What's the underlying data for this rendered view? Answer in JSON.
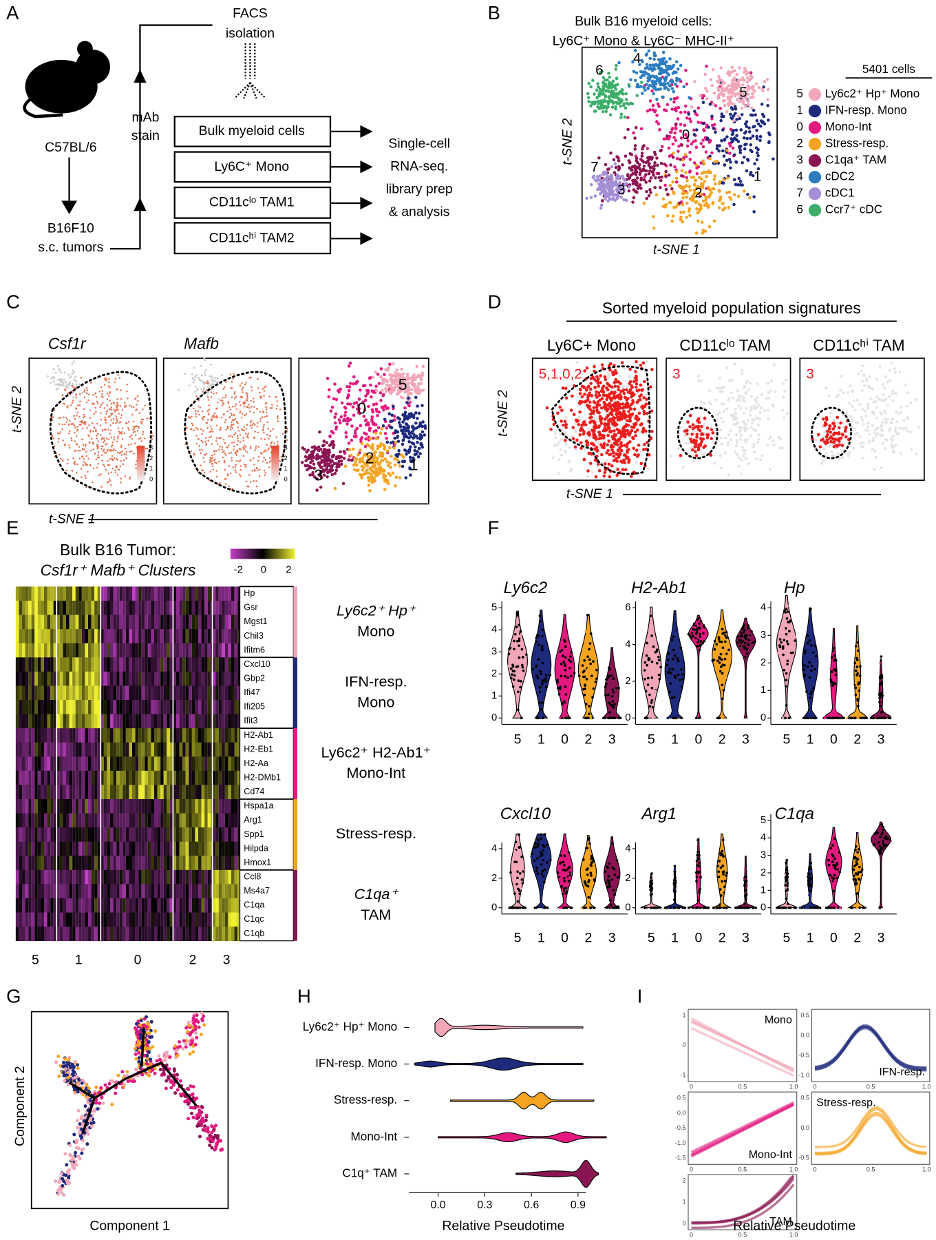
{
  "panel_labels": [
    "A",
    "B",
    "C",
    "D",
    "E",
    "F",
    "G",
    "H",
    "I"
  ],
  "panel_a": {
    "mouse": "C57BL/6",
    "tumor": [
      "B16F10",
      "s.c. tumors"
    ],
    "stain": [
      "mAb",
      "stain"
    ],
    "facs": [
      "FACS",
      "isolation"
    ],
    "sorts": [
      "Bulk myeloid cells",
      "Ly6C⁺ Mono",
      "CD11cˡᵒ TAM1",
      "CD11cʰⁱ TAM2"
    ],
    "output": [
      "Single-cell",
      "RNA-seq.",
      "library prep",
      "& analysis"
    ]
  },
  "panel_b": {
    "title": [
      "Bulk B16 myeloid cells:",
      "Ly6C⁺ Mono & Ly6C⁻ MHC-II⁺"
    ],
    "x_label": "t-SNE 1",
    "y_label": "t-SNE 2",
    "legend_title": "5401 cells",
    "clusters": [
      {
        "id": "5",
        "name": "Ly6c2⁺ Hp⁺ Mono",
        "color": "#f2a7b8"
      },
      {
        "id": "1",
        "name": "IFN-resp. Mono",
        "color": "#1e2a7c"
      },
      {
        "id": "0",
        "name": "Mono-Int",
        "color": "#e3197f"
      },
      {
        "id": "2",
        "name": "Stress-resp.",
        "color": "#f4a421"
      },
      {
        "id": "3",
        "name": "C1qa⁺ TAM",
        "color": "#8a1552"
      },
      {
        "id": "4",
        "name": "cDC2",
        "color": "#2c7cc0"
      },
      {
        "id": "7",
        "name": "cDC1",
        "color": "#a48fd6"
      },
      {
        "id": "6",
        "name": "Ccr7⁺ cDC",
        "color": "#3dae6a"
      }
    ]
  },
  "panel_c": {
    "genes": [
      "Csf1r",
      "Mafb"
    ],
    "x_label": "t-SNE 1",
    "y_label": "t-SNE 2",
    "colorbar_ticks": [
      "3",
      "2",
      "1",
      "0"
    ],
    "cluster_labels": [
      "5",
      "0",
      "3",
      "2",
      "1"
    ]
  },
  "panel_d": {
    "title": "Sorted myeloid population signatures",
    "subtitles": [
      "Ly6C+ Mono",
      "CD11cˡᵒ TAM",
      "CD11cʰⁱ TAM"
    ],
    "cluster_labels": [
      "5,1,0,2",
      "3",
      "3"
    ],
    "x_label": "t-SNE 1",
    "y_label": "t-SNE 2"
  },
  "panel_e": {
    "title": [
      "Bulk B16 Tumor:",
      "Csf1r⁺ Mafb⁺ Clusters"
    ],
    "colorbar_ticks": [
      "-2",
      "0",
      "2"
    ],
    "genes": [
      "Hp",
      "Gsr",
      "Mgst1",
      "Chil3",
      "Ifitm6",
      "Cxcl10",
      "Gbp2",
      "Ifi47",
      "Ifi205",
      "Ifit3",
      "H2-Ab1",
      "H2-Eb1",
      "H2-Aa",
      "H2-DMb1",
      "Cd74",
      "Hspa1a",
      "Arg1",
      "Spp1",
      "Hilpda",
      "Hmox1",
      "Ccl8",
      "Ms4a7",
      "C1qa",
      "C1qc",
      "C1qb"
    ],
    "groups": [
      [
        "Ly6c2⁺ Hp⁺",
        "Mono"
      ],
      [
        "IFN-resp.",
        "Mono"
      ],
      [
        "Ly6c2⁺ H2-Ab1⁺",
        "Mono-Int"
      ],
      [
        "Stress-resp."
      ],
      [
        "C1qa⁺",
        "TAM"
      ]
    ],
    "columns": [
      "5",
      "1",
      "0",
      "2",
      "3"
    ]
  },
  "panel_f": {
    "categories": [
      "5",
      "1",
      "0",
      "2",
      "3"
    ],
    "plots": [
      {
        "gene": "Ly6c2",
        "y_ticks": [
          "5",
          "4",
          "3",
          "2",
          "1",
          "0"
        ]
      },
      {
        "gene": "H2-Ab1",
        "y_ticks": [
          "6",
          "4",
          "2",
          "0"
        ]
      },
      {
        "gene": "Hp",
        "y_ticks": [
          "4",
          "3",
          "2",
          "1",
          "0"
        ]
      },
      {
        "gene": "Cxcl10",
        "y_ticks": [
          "4",
          "2",
          "0"
        ]
      },
      {
        "gene": "Arg1",
        "y_ticks": [
          "4",
          "2",
          "0"
        ]
      },
      {
        "gene": "C1qa",
        "y_ticks": [
          "5",
          "4",
          "3",
          "2",
          "1",
          "0"
        ]
      }
    ]
  },
  "panel_g": {
    "x_label": "Component 1",
    "y_label": "Component 2"
  },
  "panel_h": {
    "categories": [
      "Ly6c2⁺ Hp⁺ Mono",
      "IFN-resp. Mono",
      "Stress-resp.",
      "Mono-Int",
      "C1q⁺ TAM"
    ],
    "x_ticks": [
      "0.0",
      "0.3",
      "0.6",
      "0.9"
    ],
    "x_label": "Relative Pseudotime"
  },
  "panel_i": {
    "x_label": "Relative Pseudotime",
    "plots": [
      {
        "label": "Mono",
        "y_ticks": [
          "1",
          "0",
          "-1"
        ],
        "x_ticks": [
          "0",
          "0.5",
          "1.0"
        ]
      },
      {
        "label": "IFN-resp.",
        "y_ticks": [
          "0.5",
          "0.0",
          "-0.5",
          "-1.0"
        ],
        "x_ticks": [
          "0",
          "0.5",
          "1.0"
        ]
      },
      {
        "label": "Mono-Int",
        "y_ticks": [
          "0.5",
          "0.0",
          "-0.5",
          "-1.0",
          "-1.5"
        ],
        "x_ticks": [
          "0",
          "0.5",
          "1.0"
        ]
      },
      {
        "label": "Stress-resp.",
        "y_ticks": [
          "0.5",
          "0.0",
          "-0.5"
        ],
        "x_ticks": [
          "0",
          "0.5",
          "1.0"
        ]
      },
      {
        "label": "TAM",
        "y_ticks": [
          "2",
          "1",
          "0"
        ],
        "x_ticks": [
          "0",
          "0.5",
          "1.0"
        ]
      }
    ]
  }
}
